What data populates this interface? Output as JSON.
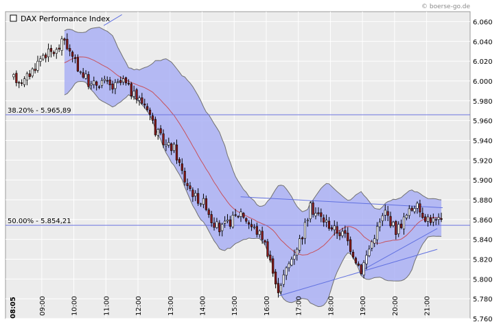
{
  "watermark": "© boerse-go.de",
  "chart_data": {
    "type": "candlestick",
    "title": "DAX Performance Index",
    "legend_position": "top-left",
    "grid": true,
    "colors": {
      "background": "#ececec",
      "plot_border": "#9a9a9a",
      "grid": "#ffffff",
      "band_fill": "#aab0f4",
      "band_edge": "#707070",
      "ma_line": "#c8505a",
      "candle_up": "#ffffff",
      "candle_down": "#8a1a1a",
      "candle_outline": "#000000",
      "trend_line": "#6070e0",
      "fib_line": "#6a72e0"
    },
    "y_axis": {
      "min": 5760,
      "max": 6070,
      "ticks": [
        "6.060",
        "6.040",
        "6.020",
        "6.000",
        "5.980",
        "5.960",
        "5.940",
        "5.920",
        "5.900",
        "5.880",
        "5.860",
        "5.840",
        "5.820",
        "5.800",
        "5.780",
        "5.760"
      ]
    },
    "x_axis": {
      "first_label": "08:05",
      "labels": [
        "09:00",
        "10:00",
        "11:00",
        "12:00",
        "13:00",
        "14:00",
        "15:00",
        "16:00",
        "17:00",
        "18:00",
        "19:00",
        "20:00",
        "21:00"
      ]
    },
    "fib_levels": [
      {
        "label": "38.20% - 5.965,89",
        "value": 5965.89
      },
      {
        "label": "50.00% - 5.854,21",
        "value": 5854.21
      }
    ],
    "trend_lines": [
      {
        "from": [
          "10:56",
          6056
        ],
        "to": [
          "11:30",
          6067
        ]
      },
      {
        "from": [
          "15:12",
          5883
        ],
        "to": [
          "21:30",
          5872
        ]
      },
      {
        "from": [
          "16:24",
          5783
        ],
        "to": [
          "21:20",
          5830
        ]
      },
      {
        "from": [
          "19:00",
          5809
        ],
        "to": [
          "21:20",
          5851
        ]
      }
    ],
    "anchors": [
      [
        "08:05",
        6003
      ],
      [
        "08:30",
        6000
      ],
      [
        "08:50",
        6015
      ],
      [
        "09:05",
        6027
      ],
      [
        "09:30",
        6030
      ],
      [
        "09:45",
        6042
      ],
      [
        "10:00",
        6022
      ],
      [
        "10:15",
        6010
      ],
      [
        "10:35",
        5995
      ],
      [
        "10:55",
        6000
      ],
      [
        "11:15",
        5993
      ],
      [
        "11:35",
        6000
      ],
      [
        "11:55",
        5985
      ],
      [
        "12:20",
        5975
      ],
      [
        "12:35",
        5950
      ],
      [
        "12:55",
        5935
      ],
      [
        "13:10",
        5932
      ],
      [
        "13:30",
        5900
      ],
      [
        "13:50",
        5883
      ],
      [
        "14:10",
        5875
      ],
      [
        "14:20",
        5860
      ],
      [
        "14:35",
        5850
      ],
      [
        "14:55",
        5858
      ],
      [
        "15:15",
        5868
      ],
      [
        "15:35",
        5853
      ],
      [
        "15:55",
        5843
      ],
      [
        "16:10",
        5820
      ],
      [
        "16:22",
        5787
      ],
      [
        "16:45",
        5815
      ],
      [
        "17:10",
        5845
      ],
      [
        "17:25",
        5872
      ],
      [
        "17:45",
        5862
      ],
      [
        "18:10",
        5850
      ],
      [
        "18:30",
        5844
      ],
      [
        "18:50",
        5820
      ],
      [
        "19:00",
        5809
      ],
      [
        "19:25",
        5845
      ],
      [
        "19:45",
        5868
      ],
      [
        "20:05",
        5849
      ],
      [
        "20:20",
        5860
      ],
      [
        "20:40",
        5875
      ],
      [
        "21:00",
        5863
      ],
      [
        "21:20",
        5858
      ]
    ]
  }
}
